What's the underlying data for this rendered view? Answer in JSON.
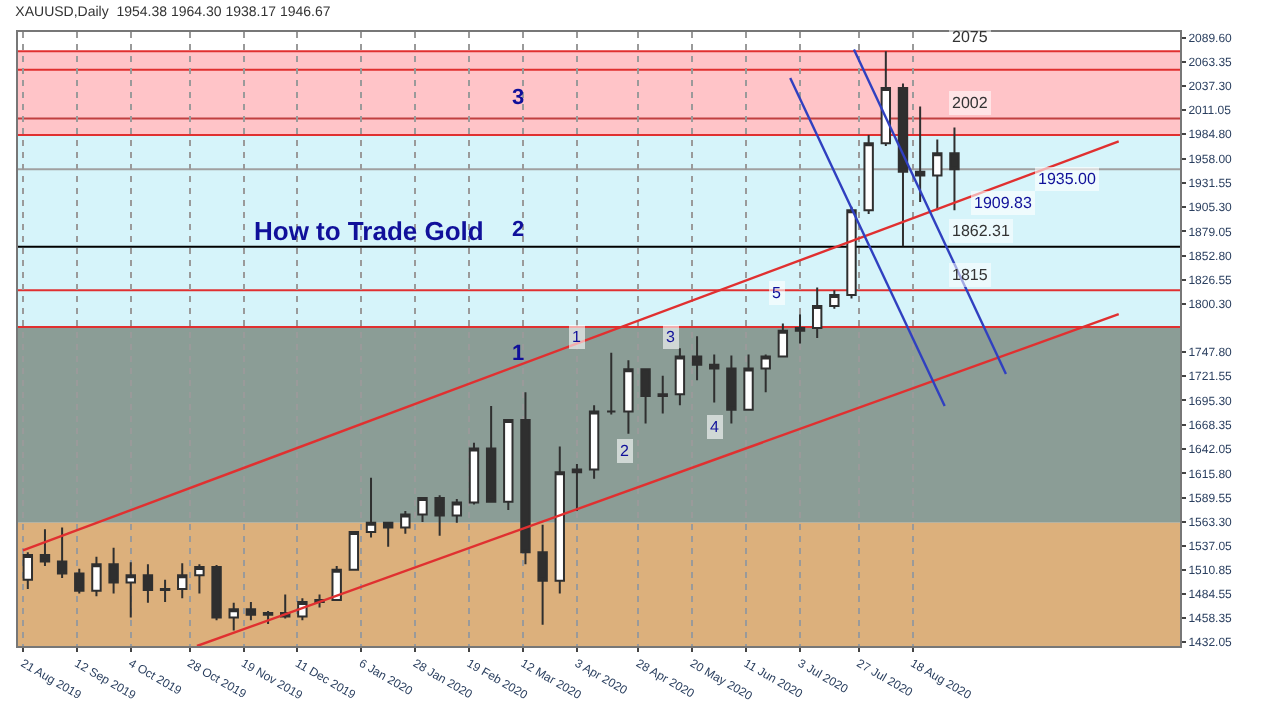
{
  "chart_data": {
    "type": "candlestick",
    "title": "XAUUSD,Daily  1954.38 1964.30 1938.17 1946.67",
    "x": [
      "2019-08-23",
      "2019-08-30",
      "2019-09-06",
      "2019-09-13",
      "2019-09-20",
      "2019-09-27",
      "2019-10-04",
      "2019-10-11",
      "2019-10-18",
      "2019-10-25",
      "2019-11-01",
      "2019-11-08",
      "2019-11-15",
      "2019-11-22",
      "2019-11-29",
      "2019-12-06",
      "2019-12-13",
      "2019-12-20",
      "2019-12-27",
      "2020-01-03",
      "2020-01-10",
      "2020-01-17",
      "2020-01-24",
      "2020-01-31",
      "2020-02-07",
      "2020-02-14",
      "2020-02-21",
      "2020-02-28",
      "2020-03-06",
      "2020-03-13",
      "2020-03-20",
      "2020-03-27",
      "2020-04-03",
      "2020-04-10",
      "2020-04-17",
      "2020-04-24",
      "2020-05-01",
      "2020-05-08",
      "2020-05-15",
      "2020-05-22",
      "2020-05-29",
      "2020-06-05",
      "2020-06-12",
      "2020-06-19",
      "2020-06-26",
      "2020-07-03",
      "2020-07-10",
      "2020-07-17",
      "2020-07-24",
      "2020-07-31",
      "2020-08-07",
      "2020-08-14",
      "2020-08-21",
      "2020-08-28",
      "2020-09-04"
    ],
    "ohlc": [
      [
        1500,
        1530,
        1490,
        1527
      ],
      [
        1527,
        1555,
        1515,
        1520
      ],
      [
        1520,
        1557,
        1502,
        1507
      ],
      [
        1507,
        1512,
        1485,
        1488
      ],
      [
        1488,
        1525,
        1482,
        1517
      ],
      [
        1517,
        1535,
        1485,
        1497
      ],
      [
        1497,
        1519,
        1459,
        1505
      ],
      [
        1505,
        1517,
        1475,
        1489
      ],
      [
        1489,
        1500,
        1476,
        1490
      ],
      [
        1490,
        1518,
        1480,
        1505
      ],
      [
        1505,
        1517,
        1485,
        1514
      ],
      [
        1514,
        1516,
        1456,
        1459
      ],
      [
        1459,
        1475,
        1445,
        1468
      ],
      [
        1468,
        1476,
        1456,
        1462
      ],
      [
        1462,
        1466,
        1452,
        1464
      ],
      [
        1464,
        1484,
        1458,
        1460
      ],
      [
        1460,
        1480,
        1456,
        1476
      ],
      [
        1476,
        1484,
        1470,
        1478
      ],
      [
        1478,
        1515,
        1477,
        1511
      ],
      [
        1511,
        1553,
        1510,
        1552
      ],
      [
        1552,
        1611,
        1546,
        1562
      ],
      [
        1562,
        1563,
        1536,
        1557
      ],
      [
        1557,
        1575,
        1550,
        1571
      ],
      [
        1571,
        1590,
        1563,
        1589
      ],
      [
        1589,
        1592,
        1548,
        1570
      ],
      [
        1570,
        1588,
        1562,
        1584
      ],
      [
        1584,
        1649,
        1582,
        1643
      ],
      [
        1643,
        1689,
        1585,
        1585
      ],
      [
        1585,
        1675,
        1576,
        1674
      ],
      [
        1674,
        1704,
        1517,
        1530
      ],
      [
        1530,
        1560,
        1451,
        1499
      ],
      [
        1499,
        1645,
        1485,
        1617
      ],
      [
        1617,
        1626,
        1575,
        1620
      ],
      [
        1620,
        1690,
        1610,
        1683
      ],
      [
        1683,
        1747,
        1680,
        1683
      ],
      [
        1683,
        1739,
        1659,
        1729
      ],
      [
        1729,
        1730,
        1670,
        1700
      ],
      [
        1700,
        1722,
        1681,
        1702
      ],
      [
        1702,
        1752,
        1690,
        1743
      ],
      [
        1743,
        1765,
        1717,
        1734
      ],
      [
        1734,
        1745,
        1693,
        1730
      ],
      [
        1730,
        1744,
        1670,
        1685
      ],
      [
        1685,
        1745,
        1685,
        1730
      ],
      [
        1730,
        1745,
        1704,
        1743
      ],
      [
        1743,
        1779,
        1743,
        1771
      ],
      [
        1771,
        1789,
        1757,
        1774
      ],
      [
        1774,
        1818,
        1763,
        1798
      ],
      [
        1798,
        1815,
        1795,
        1810
      ],
      [
        1810,
        1906,
        1806,
        1902
      ],
      [
        1902,
        1984,
        1898,
        1975
      ],
      [
        1975,
        2075,
        1972,
        2035
      ],
      [
        2035,
        2040,
        1863,
        1944
      ],
      [
        1944,
        2015,
        1911,
        1940
      ],
      [
        1940,
        1979,
        1902,
        1964
      ],
      [
        1964,
        1992,
        1902,
        1946.67
      ]
    ],
    "color": "#2f2f2f",
    "series": [
      {
        "type": "line",
        "color": "#e03030",
        "x": [
          "2019-08-21",
          "2020-11-10"
        ],
        "values": [
          1532,
          1977
        ]
      },
      {
        "type": "line",
        "color": "#e03030",
        "x": [
          "2019-10-31",
          "2020-11-10"
        ],
        "values": [
          1428,
          1789
        ]
      },
      {
        "type": "line",
        "color": "#3040c0",
        "x": [
          "2020-06-29",
          "2020-08-31"
        ],
        "values": [
          2046,
          1689
        ]
      },
      {
        "type": "line",
        "color": "#3040c0",
        "x": [
          "2020-07-25",
          "2020-09-25"
        ],
        "values": [
          2077,
          1724
        ]
      }
    ],
    "bands": [
      {
        "axis": "y",
        "from": 1984,
        "to": 2075,
        "color": "#ffc4c8"
      },
      {
        "axis": "y",
        "from": 1775,
        "to": 1984,
        "color": "#d6f4fa"
      },
      {
        "axis": "y",
        "from": 1562,
        "to": 1775,
        "color": "#8b9d96"
      },
      {
        "axis": "y",
        "from": 1428,
        "to": 1562,
        "color": "#dcb07c"
      }
    ],
    "ref_lines": [
      {
        "axis": "y",
        "value": 2075,
        "label": "2075",
        "color": "#e03030"
      },
      {
        "axis": "y",
        "value": 2055,
        "label": null,
        "color": "#e03030"
      },
      {
        "axis": "y",
        "value": 1984,
        "label": null,
        "color": "#e03030"
      },
      {
        "axis": "y",
        "value": 1775,
        "label": null,
        "color": "#e03030"
      },
      {
        "axis": "y",
        "value": 1946.67,
        "label": null,
        "color": "#a0a0a0"
      },
      {
        "axis": "y",
        "value": 2002,
        "label": "2002",
        "color": "#c04040"
      },
      {
        "axis": "y",
        "value": 1862.31,
        "label": "1862.31",
        "color": "#000000"
      },
      {
        "axis": "y",
        "value": 1815,
        "label": "1815",
        "color": "#e03030"
      }
    ],
    "annotations": [
      "How to Trade Gold",
      "3",
      "2",
      "1",
      {
        "text": "1",
        "x": "2020-04-03",
        "y": 1764
      },
      {
        "text": "2",
        "x": "2020-04-23",
        "y": 1640
      },
      {
        "text": "3",
        "x": "2020-05-11",
        "y": 1765
      },
      {
        "text": "4",
        "x": "2020-05-29",
        "y": 1667
      },
      {
        "text": "5",
        "x": "2020-06-24",
        "y": 1813
      },
      {
        "text": "1935.00",
        "x": "2020-10-20",
        "y": 1935
      },
      {
        "text": "1909.83",
        "x": "2020-09-24",
        "y": 1909.83
      }
    ],
    "xlim": [
      "2019-08-19",
      "2020-12-05"
    ],
    "xticks": [
      {
        "value": "2019-08-21",
        "label": "21 Aug 2019"
      },
      {
        "value": "2019-09-12",
        "label": "12 Sep 2019"
      },
      {
        "value": "2019-10-04",
        "label": "4 Oct 2019"
      },
      {
        "value": "2019-10-28",
        "label": "28 Oct 2019"
      },
      {
        "value": "2019-11-19",
        "label": "19 Nov 2019"
      },
      {
        "value": "2019-12-11",
        "label": "11 Dec 2019"
      },
      {
        "value": "2020-01-06",
        "label": "6 Jan 2020"
      },
      {
        "value": "2020-01-28",
        "label": "28 Jan 2020"
      },
      {
        "value": "2020-02-19",
        "label": "19 Feb 2020"
      },
      {
        "value": "2020-03-12",
        "label": "12 Mar 2020"
      },
      {
        "value": "2020-04-03",
        "label": "3 Apr 2020"
      },
      {
        "value": "2020-04-28",
        "label": "28 Apr 2020"
      },
      {
        "value": "2020-05-20",
        "label": "20 May 2020"
      },
      {
        "value": "2020-06-11",
        "label": "11 Jun 2020"
      },
      {
        "value": "2020-07-03",
        "label": "3 Jul 2020"
      },
      {
        "value": "2020-07-27",
        "label": "27 Jul 2020"
      },
      {
        "value": "2020-08-18",
        "label": "18 Aug 2020"
      }
    ],
    "ylim": [
      1428,
      2096
    ],
    "yticks": [
      {
        "value": 2089.6,
        "label": "2089.60"
      },
      {
        "value": 2063.35,
        "label": "2063.35"
      },
      {
        "value": 2037.3,
        "label": "2037.30"
      },
      {
        "value": 2011.05,
        "label": "2011.05"
      },
      {
        "value": 1984.8,
        "label": "1984.80"
      },
      {
        "value": 1958,
        "label": "1958.00"
      },
      {
        "value": 1931.55,
        "label": "1931.55"
      },
      {
        "value": 1905.3,
        "label": "1905.30"
      },
      {
        "value": 1879.05,
        "label": "1879.05"
      },
      {
        "value": 1852.8,
        "label": "1852.80"
      },
      {
        "value": 1826.55,
        "label": "1826.55"
      },
      {
        "value": 1800.3,
        "label": "1800.30"
      },
      {
        "value": 1747.8,
        "label": "1747.80"
      },
      {
        "value": 1721.55,
        "label": "1721.55"
      },
      {
        "value": 1695.3,
        "label": "1695.30"
      },
      {
        "value": 1668.35,
        "label": "1668.35"
      },
      {
        "value": 1642.05,
        "label": "1642.05"
      },
      {
        "value": 1615.8,
        "label": "1615.80"
      },
      {
        "value": 1589.55,
        "label": "1589.55"
      },
      {
        "value": 1563.3,
        "label": "1563.30"
      },
      {
        "value": 1537.05,
        "label": "1537.05"
      },
      {
        "value": 1510.85,
        "label": "1510.85"
      },
      {
        "value": 1484.55,
        "label": "1484.55"
      },
      {
        "value": 1458.35,
        "label": "1458.35"
      },
      {
        "value": 1432.05,
        "label": "1432.05"
      }
    ],
    "grid": "x"
  }
}
